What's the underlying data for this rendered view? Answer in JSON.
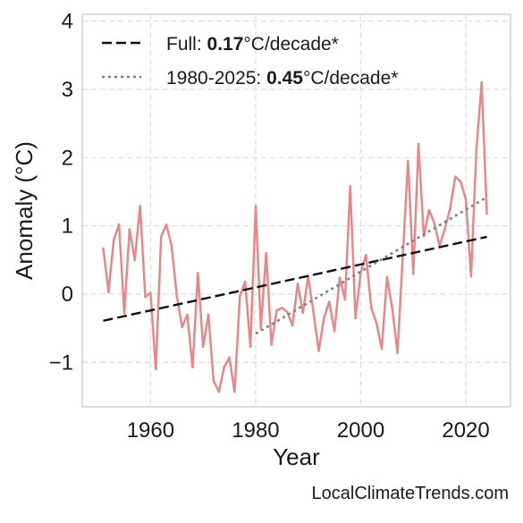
{
  "chart_data": {
    "type": "line",
    "title": "",
    "xlabel": "Year",
    "ylabel": "Anomaly (°C)",
    "xlim": [
      1947,
      2028.5
    ],
    "ylim": [
      -1.65,
      4.1
    ],
    "xticks": [
      1960,
      1980,
      2000,
      2020
    ],
    "xtick_labels": [
      "1960",
      "1980",
      "2000",
      "2020"
    ],
    "yticks": [
      -1,
      0,
      1,
      2,
      3,
      4
    ],
    "ytick_labels": [
      "−1",
      "0",
      "1",
      "2",
      "3",
      "4"
    ],
    "grid": true,
    "legend_position": "top-left",
    "series": [
      {
        "style": "solid",
        "color": "#e8868a",
        "x": [
          1951,
          1952,
          1953,
          1954,
          1955,
          1956,
          1957,
          1958,
          1959,
          1960,
          1961,
          1962,
          1963,
          1964,
          1965,
          1966,
          1967,
          1968,
          1969,
          1970,
          1971,
          1972,
          1973,
          1974,
          1975,
          1976,
          1977,
          1978,
          1979,
          1980,
          1981,
          1982,
          1983,
          1984,
          1985,
          1986,
          1987,
          1988,
          1989,
          1990,
          1991,
          1992,
          1993,
          1994,
          1995,
          1996,
          1997,
          1998,
          1999,
          2000,
          2001,
          2002,
          2003,
          2004,
          2005,
          2006,
          2007,
          2008,
          2009,
          2010,
          2011,
          2012,
          2013,
          2014,
          2015,
          2016,
          2017,
          2018,
          2019,
          2020,
          2021,
          2022,
          2023,
          2024
        ],
        "values": [
          0.67,
          0.03,
          0.8,
          1.02,
          -0.28,
          0.95,
          0.5,
          1.29,
          -0.04,
          0.02,
          -1.1,
          0.84,
          1.02,
          0.71,
          -0.03,
          -0.48,
          -0.3,
          -1.07,
          0.31,
          -0.77,
          -0.3,
          -1.27,
          -1.43,
          -1.07,
          -0.93,
          -1.43,
          -0.03,
          0.18,
          -0.77,
          1.29,
          -0.5,
          0.6,
          -0.74,
          -0.24,
          -0.2,
          -0.26,
          -0.46,
          0.15,
          -0.27,
          0.26,
          -0.26,
          -0.83,
          -0.35,
          -0.11,
          -0.54,
          0.24,
          -0.08,
          1.58,
          -0.35,
          0.32,
          0.57,
          -0.2,
          -0.42,
          -0.8,
          0.25,
          -0.21,
          -0.86,
          0.55,
          1.95,
          0.3,
          2.2,
          0.85,
          1.23,
          1.04,
          0.71,
          0.95,
          1.25,
          1.72,
          1.65,
          1.39,
          0.26,
          2.1,
          3.1,
          1.18
        ]
      },
      {
        "name": "Full",
        "style": "dashed",
        "color": "#111111",
        "x": [
          1951,
          2024
        ],
        "values": [
          -0.39,
          0.84
        ]
      },
      {
        "name": "1980-2025",
        "style": "dotted",
        "color": "#808080",
        "x": [
          1980,
          2024
        ],
        "values": [
          -0.58,
          1.42
        ]
      }
    ],
    "legend": [
      {
        "label_prefix": "Full: ",
        "value": "0.17",
        "label_suffix": "°C/decade*",
        "style": "dashed",
        "color": "#111111"
      },
      {
        "label_prefix": "1980-2025: ",
        "value": "0.45",
        "label_suffix": "°C/decade*",
        "style": "dotted",
        "color": "#808080"
      }
    ]
  },
  "credit": "LocalClimateTrends.com"
}
